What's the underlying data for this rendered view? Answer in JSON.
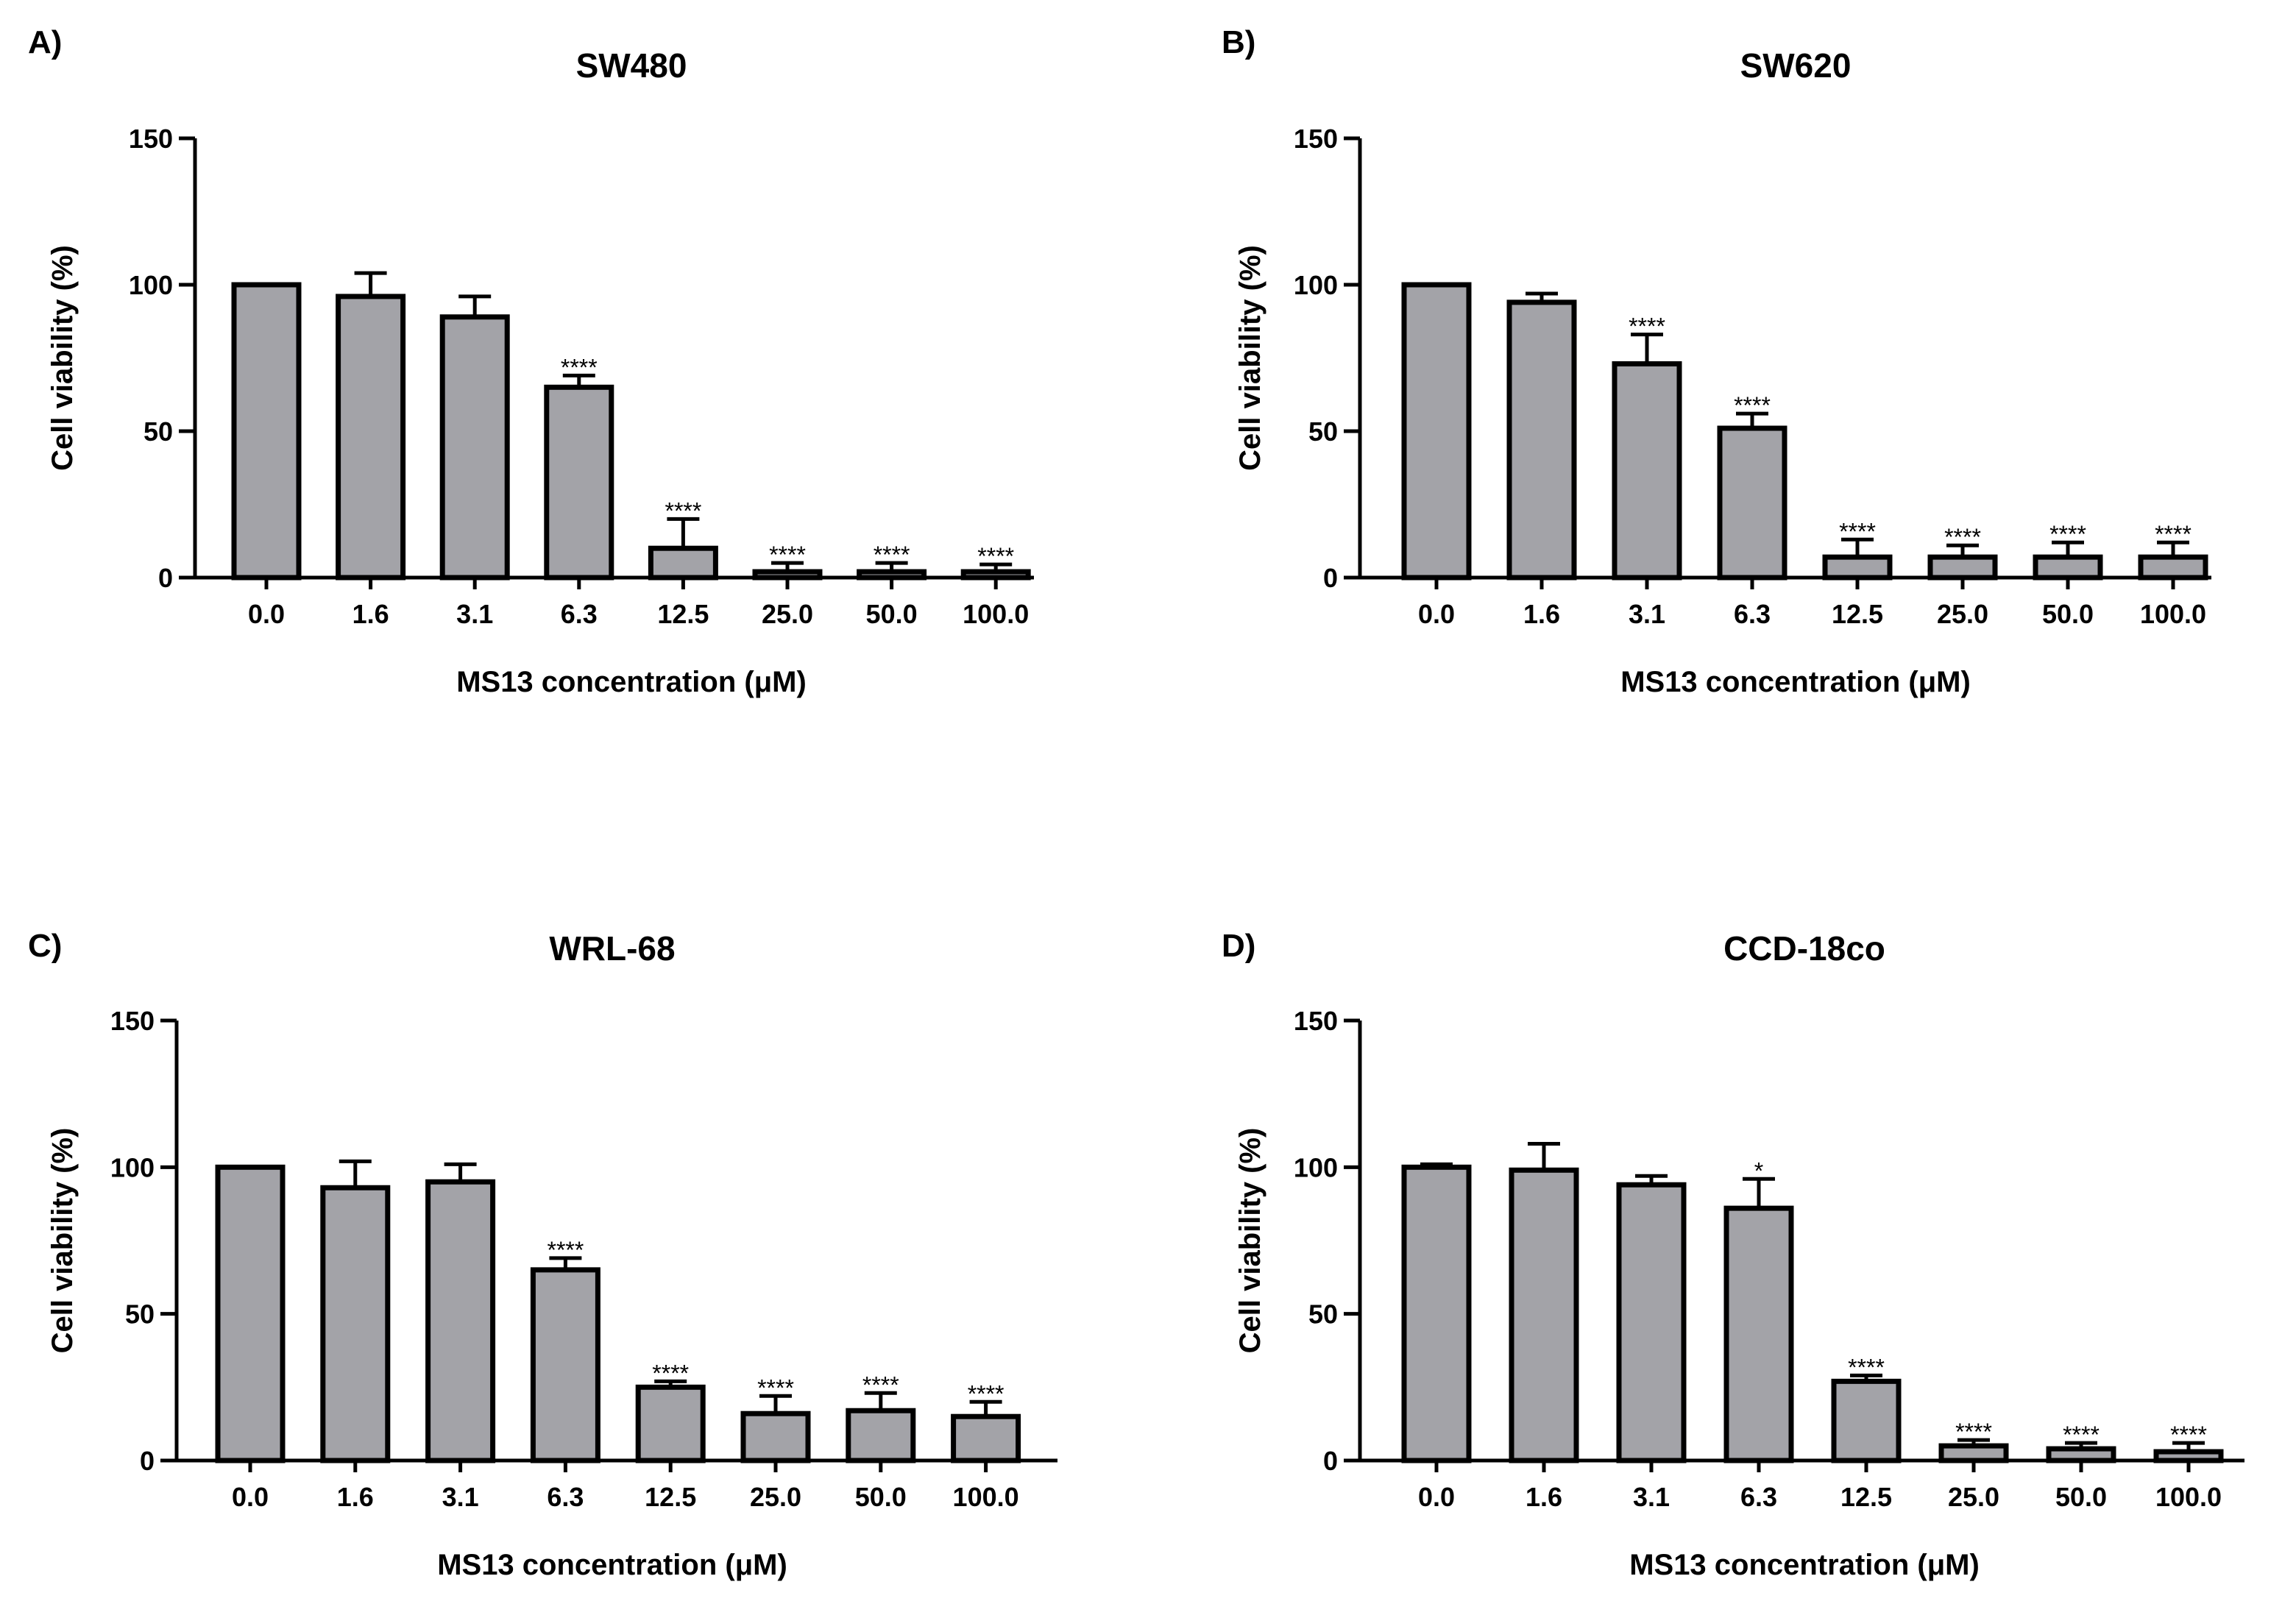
{
  "figure": {
    "colors": {
      "bar_fill": "#a3a3a8",
      "bar_stroke": "#000000",
      "axis": "#000000",
      "background": "#ffffff"
    }
  },
  "chart_data": [
    {
      "type": "bar",
      "panel_label": "A)",
      "title": "SW480",
      "xlabel": "MS13 concentration (μM)",
      "ylabel": "Cell viability (%)",
      "ylim": [
        0,
        150
      ],
      "yticks": [
        "0",
        "50",
        "100",
        "150"
      ],
      "categories": [
        "0.0",
        "1.6",
        "3.1",
        "6.3",
        "12.5",
        "25.0",
        "50.0",
        "100.0"
      ],
      "values": [
        100,
        96,
        89,
        65,
        10,
        2,
        2,
        2
      ],
      "errors": [
        0,
        8,
        7,
        4,
        10,
        3,
        3,
        2.5
      ],
      "significance": [
        "",
        "",
        "",
        "****",
        "****",
        "****",
        "****",
        "****"
      ]
    },
    {
      "type": "bar",
      "panel_label": "B)",
      "title": "SW620",
      "xlabel": "MS13 concentration (μM)",
      "ylabel": "Cell viability (%)",
      "ylim": [
        0,
        150
      ],
      "yticks": [
        "0",
        "50",
        "100",
        "150"
      ],
      "categories": [
        "0.0",
        "1.6",
        "3.1",
        "6.3",
        "12.5",
        "25.0",
        "50.0",
        "100.0"
      ],
      "values": [
        100,
        94,
        73,
        51,
        7,
        7,
        7,
        7
      ],
      "errors": [
        0,
        3,
        10,
        5,
        6,
        4,
        5,
        5
      ],
      "significance": [
        "",
        "",
        "****",
        "****",
        "****",
        "****",
        "****",
        "****"
      ]
    },
    {
      "type": "bar",
      "panel_label": "C)",
      "title": "WRL-68",
      "xlabel": "MS13 concentration (μM)",
      "ylabel": "Cell viability (%)",
      "ylim": [
        0,
        150
      ],
      "yticks": [
        "0",
        "50",
        "100",
        "150"
      ],
      "categories": [
        "0.0",
        "1.6",
        "3.1",
        "6.3",
        "12.5",
        "25.0",
        "50.0",
        "100.0"
      ],
      "values": [
        100,
        93,
        95,
        65,
        25,
        16,
        17,
        15
      ],
      "errors": [
        0,
        9,
        6,
        4,
        2,
        6,
        6,
        5
      ],
      "significance": [
        "",
        "",
        "",
        "****",
        "****",
        "****",
        "****",
        "****"
      ]
    },
    {
      "type": "bar",
      "panel_label": "D)",
      "title": "CCD-18co",
      "xlabel": "MS13 concentration (μM)",
      "ylabel": "Cell viability (%)",
      "ylim": [
        0,
        150
      ],
      "yticks": [
        "0",
        "50",
        "100",
        "150"
      ],
      "categories": [
        "0.0",
        "1.6",
        "3.1",
        "6.3",
        "12.5",
        "25.0",
        "50.0",
        "100.0"
      ],
      "values": [
        100,
        99,
        94,
        86,
        27,
        5,
        4,
        3
      ],
      "errors": [
        1,
        9,
        3,
        10,
        2,
        2,
        2,
        3
      ],
      "significance": [
        "",
        "",
        "",
        "*",
        "****",
        "****",
        "****",
        "****"
      ]
    }
  ]
}
